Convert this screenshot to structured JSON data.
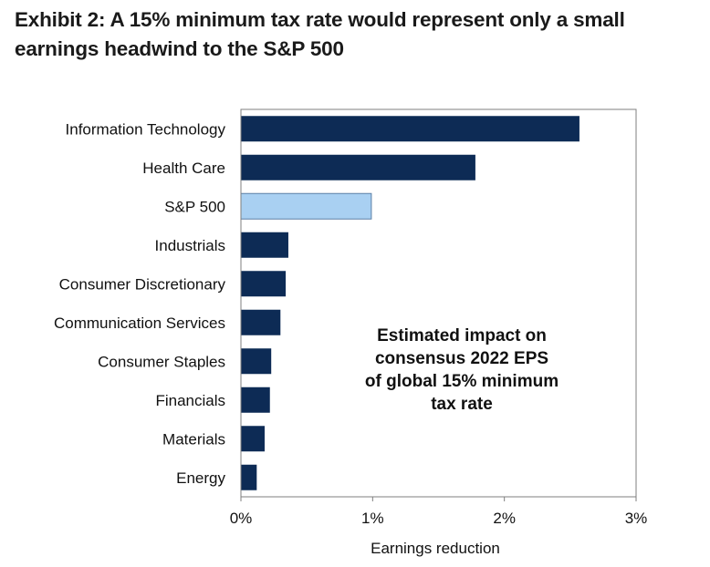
{
  "title_lines": [
    "Exhibit 2: A 15% minimum tax rate would represent only a small",
    "earnings headwind to the S&P 500"
  ],
  "colors": {
    "bar_primary": "#0d2b55",
    "bar_highlight": "#a9d0f2",
    "highlight_border": "#5a7fa6",
    "axis": "#7f7f7f"
  },
  "chart_data": {
    "type": "bar",
    "orientation": "horizontal",
    "title": "Exhibit 2: A 15% minimum tax rate would represent only a small earnings headwind to the S&P 500",
    "categories": [
      "Information Technology",
      "Health Care",
      "S&P 500",
      "Industrials",
      "Consumer Discretionary",
      "Communication Services",
      "Consumer Staples",
      "Financials",
      "Materials",
      "Energy"
    ],
    "values": [
      2.57,
      1.78,
      0.99,
      0.36,
      0.34,
      0.3,
      0.23,
      0.22,
      0.18,
      0.12
    ],
    "highlight": "S&P 500",
    "xlabel": "Earnings reduction",
    "ylabel": "",
    "xlim": [
      0,
      3
    ],
    "x_ticks": [
      0,
      1,
      2,
      3
    ],
    "x_tick_labels": [
      "0%",
      "1%",
      "2%",
      "3%"
    ],
    "annotation_lines": [
      "Estimated impact on",
      "consensus 2022 EPS",
      "of global 15% minimum",
      "tax rate"
    ],
    "grid": false,
    "legend": "none"
  }
}
